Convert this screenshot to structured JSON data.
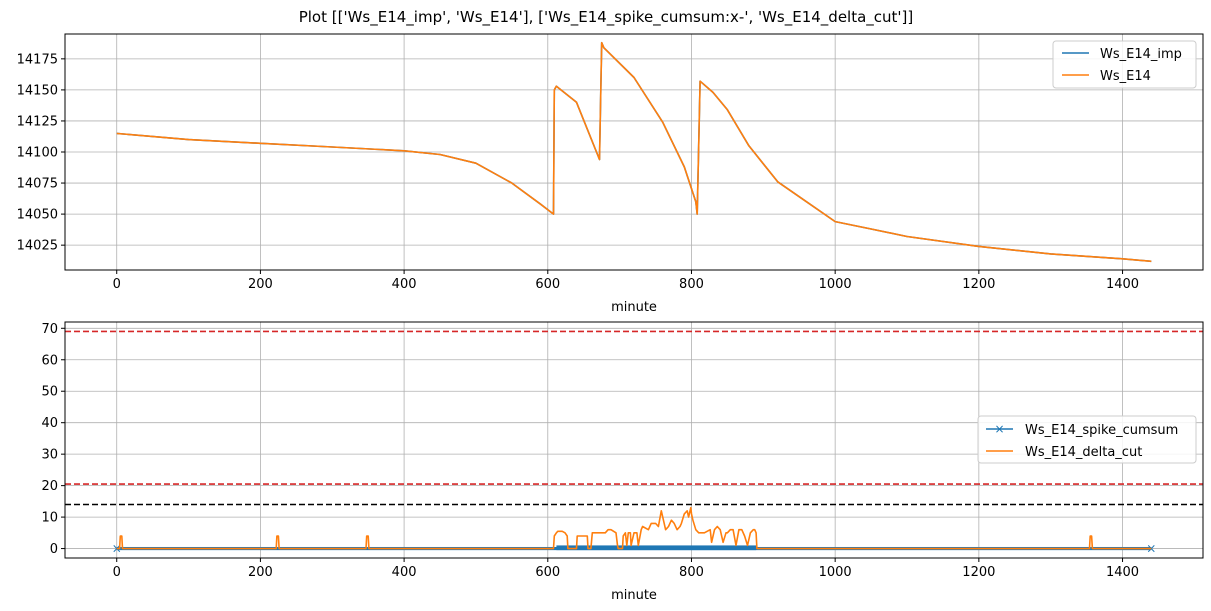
{
  "figure": {
    "title": "Plot [['Ws_E14_imp', 'Ws_E14'], ['Ws_E14_spike_cumsum:x-', 'Ws_E14_delta_cut']]"
  },
  "colors": {
    "blue": "#1f77b4",
    "orange": "#ff7f0e",
    "red": "#d62728",
    "black": "#000000",
    "grid": "#b0b0b0"
  },
  "chart_data": [
    {
      "type": "line",
      "xlabel": "minute",
      "ylabel": "",
      "xlim": [
        -72,
        1512
      ],
      "ylim": [
        14005,
        14195
      ],
      "xticks": [
        0,
        200,
        400,
        600,
        800,
        1000,
        1200,
        1400
      ],
      "yticks": [
        14025,
        14050,
        14075,
        14100,
        14125,
        14150,
        14175
      ],
      "grid": true,
      "legend_position": "upper right",
      "series": [
        {
          "name": "Ws_E14_imp",
          "color": "#1f77b4",
          "style": "-",
          "x": [
            0,
            100,
            200,
            300,
            400,
            450,
            500,
            550,
            590,
            608,
            609,
            612,
            640,
            672,
            675,
            678,
            720,
            760,
            790,
            806,
            808,
            812,
            830,
            850,
            880,
            920,
            960,
            1000,
            1050,
            1100,
            1200,
            1300,
            1400,
            1440
          ],
          "y": [
            14115,
            14110,
            14107,
            14104,
            14101,
            14098,
            14091,
            14075,
            14058,
            14050,
            14150,
            14153,
            14140,
            14094,
            14188,
            14184,
            14160,
            14124,
            14088,
            14060,
            14050,
            14157,
            14148,
            14134,
            14105,
            14076,
            14060,
            14044,
            14038,
            14032,
            14024,
            14018,
            14014,
            14012
          ]
        },
        {
          "name": "Ws_E14",
          "color": "#ff7f0e",
          "style": "-",
          "x": [
            0,
            100,
            200,
            300,
            400,
            450,
            500,
            550,
            590,
            608,
            609,
            612,
            640,
            672,
            675,
            678,
            720,
            760,
            790,
            806,
            808,
            812,
            830,
            850,
            880,
            920,
            960,
            1000,
            1050,
            1100,
            1200,
            1300,
            1400,
            1440
          ],
          "y": [
            14115,
            14110,
            14107,
            14104,
            14101,
            14098,
            14091,
            14075,
            14058,
            14050,
            14150,
            14153,
            14140,
            14094,
            14188,
            14184,
            14160,
            14124,
            14088,
            14060,
            14050,
            14157,
            14148,
            14134,
            14105,
            14076,
            14060,
            14044,
            14038,
            14032,
            14024,
            14018,
            14014,
            14012
          ]
        }
      ]
    },
    {
      "type": "line",
      "xlabel": "minute",
      "ylabel": "",
      "xlim": [
        -72,
        1512
      ],
      "ylim": [
        -3,
        72
      ],
      "xticks": [
        0,
        200,
        400,
        600,
        800,
        1000,
        1200,
        1400
      ],
      "yticks": [
        0,
        10,
        20,
        30,
        40,
        50,
        60,
        70
      ],
      "grid": true,
      "legend_position": "center right",
      "hlines": [
        {
          "y": 69,
          "color": "#d62728",
          "style": "dashed"
        },
        {
          "y": 20.5,
          "color": "#d62728",
          "style": "dashed"
        },
        {
          "y": 14,
          "color": "#000000",
          "style": "dashed"
        }
      ],
      "series": [
        {
          "name": "Ws_E14_spike_cumsum",
          "color": "#1f77b4",
          "style": "x-",
          "band": {
            "x_start": 0,
            "x_end": 1440,
            "low": -0.5,
            "high": 0.5
          },
          "dense_band": {
            "x_start": 612,
            "x_end": 890,
            "low": -0.5,
            "high": 1
          }
        },
        {
          "name": "Ws_E14_delta_cut",
          "color": "#ff7f0e",
          "style": "-",
          "x": [
            0,
            4,
            5,
            7,
            8,
            222,
            223,
            225,
            226,
            347,
            348,
            350,
            351,
            608,
            609,
            612,
            614,
            620,
            624,
            627,
            628,
            640,
            641,
            655,
            656,
            660,
            662,
            680,
            684,
            688,
            695,
            697,
            698,
            704,
            705,
            708,
            710,
            712,
            715,
            716,
            720,
            724,
            726,
            730,
            732,
            740,
            744,
            750,
            754,
            758,
            762,
            764,
            768,
            772,
            776,
            780,
            784,
            786,
            790,
            794,
            796,
            799,
            800,
            802,
            806,
            810,
            818,
            826,
            828,
            832,
            836,
            840,
            844,
            848,
            850,
            854,
            858,
            862,
            866,
            870,
            874,
            878,
            882,
            886,
            888,
            890,
            891,
            1354,
            1355,
            1357,
            1358,
            1440
          ],
          "y": [
            0,
            0,
            4,
            4,
            0,
            0,
            4,
            4,
            0,
            0,
            4,
            4,
            0,
            0,
            4,
            5,
            5.5,
            5.5,
            5,
            4,
            0,
            0,
            4,
            4,
            0,
            0,
            5,
            5,
            6,
            6,
            5,
            1,
            0,
            0,
            4,
            5,
            1,
            5,
            5,
            1,
            5,
            5,
            1,
            6,
            7,
            6,
            8,
            8,
            7,
            12,
            8,
            6,
            7,
            9,
            8,
            6,
            7,
            8,
            11,
            12,
            10,
            13,
            11,
            9,
            6,
            5,
            5,
            6,
            2,
            6,
            7,
            6,
            2,
            5,
            5,
            6,
            6,
            1,
            6,
            6,
            4,
            1,
            5,
            6,
            6,
            5,
            0,
            0,
            4,
            4,
            0,
            0
          ]
        }
      ]
    }
  ]
}
